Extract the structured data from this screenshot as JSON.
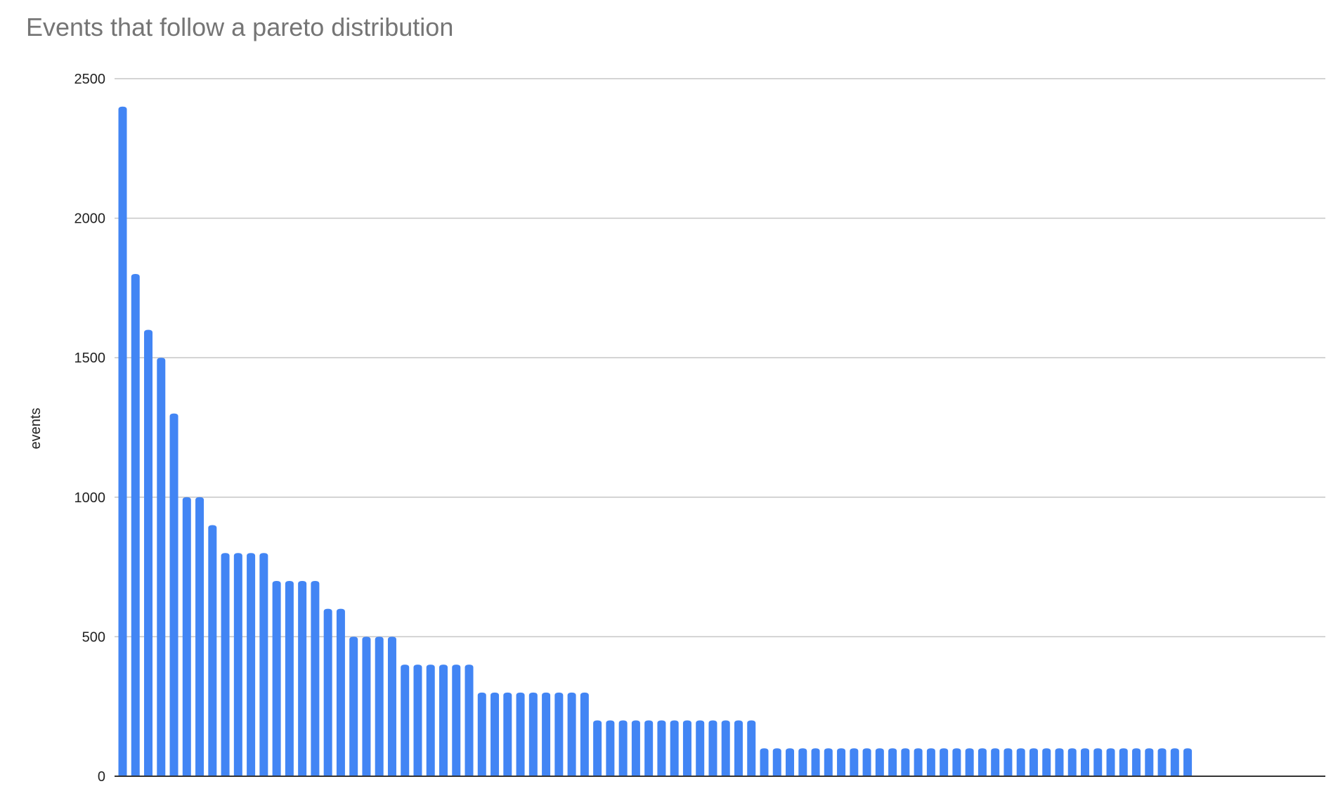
{
  "chart_data": {
    "type": "bar",
    "title": "Events that follow a pareto distribution",
    "xlabel": "",
    "ylabel": "events",
    "ylim": [
      0,
      2500
    ],
    "yticks": [
      "0",
      "500",
      "1000",
      "1500",
      "2000",
      "2500"
    ],
    "grid": true,
    "bar_color": "#4285f4",
    "values": [
      2400,
      1800,
      1600,
      1500,
      1300,
      1000,
      1000,
      900,
      800,
      800,
      800,
      800,
      700,
      700,
      700,
      700,
      600,
      600,
      500,
      500,
      500,
      500,
      400,
      400,
      400,
      400,
      400,
      400,
      300,
      300,
      300,
      300,
      300,
      300,
      300,
      300,
      300,
      200,
      200,
      200,
      200,
      200,
      200,
      200,
      200,
      200,
      200,
      200,
      200,
      200,
      100,
      100,
      100,
      100,
      100,
      100,
      100,
      100,
      100,
      100,
      100,
      100,
      100,
      100,
      100,
      100,
      100,
      100,
      100,
      100,
      100,
      100,
      100,
      100,
      100,
      100,
      100,
      100,
      100,
      100,
      100,
      100,
      100,
      100
    ]
  }
}
